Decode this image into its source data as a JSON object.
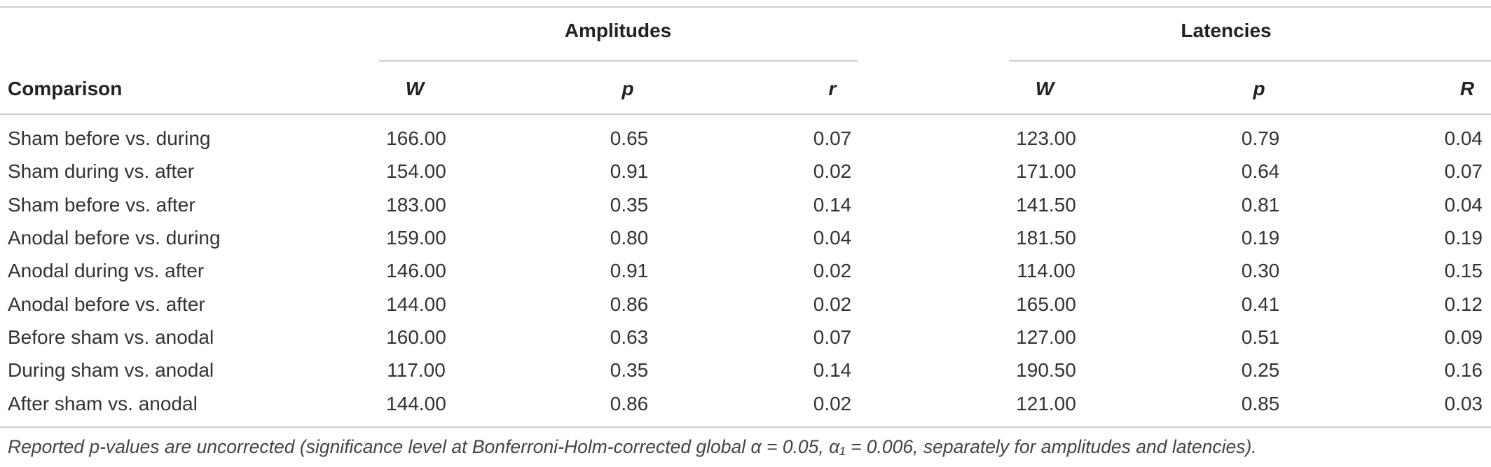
{
  "table": {
    "group_headers": {
      "amplitudes": "Amplitudes",
      "latencies": "Latencies"
    },
    "columns": {
      "comparison": "Comparison",
      "amp_w": "W",
      "amp_p": "p",
      "amp_r": "r",
      "lat_w": "W",
      "lat_p": "p",
      "lat_r": "R"
    },
    "rows": [
      {
        "comparison": "Sham before vs. during",
        "amp_w": "166.00",
        "amp_p": "0.65",
        "amp_r": "0.07",
        "lat_w": "123.00",
        "lat_p": "0.79",
        "lat_r": "0.04"
      },
      {
        "comparison": "Sham during vs. after",
        "amp_w": "154.00",
        "amp_p": "0.91",
        "amp_r": "0.02",
        "lat_w": "171.00",
        "lat_p": "0.64",
        "lat_r": "0.07"
      },
      {
        "comparison": "Sham before vs. after",
        "amp_w": "183.00",
        "amp_p": "0.35",
        "amp_r": "0.14",
        "lat_w": "141.50",
        "lat_p": "0.81",
        "lat_r": "0.04"
      },
      {
        "comparison": "Anodal before vs. during",
        "amp_w": "159.00",
        "amp_p": "0.80",
        "amp_r": "0.04",
        "lat_w": "181.50",
        "lat_p": "0.19",
        "lat_r": "0.19"
      },
      {
        "comparison": "Anodal during vs. after",
        "amp_w": "146.00",
        "amp_p": "0.91",
        "amp_r": "0.02",
        "lat_w": "114.00",
        "lat_p": "0.30",
        "lat_r": "0.15"
      },
      {
        "comparison": "Anodal before vs. after",
        "amp_w": "144.00",
        "amp_p": "0.86",
        "amp_r": "0.02",
        "lat_w": "165.00",
        "lat_p": "0.41",
        "lat_r": "0.12"
      },
      {
        "comparison": "Before sham vs. anodal",
        "amp_w": "160.00",
        "amp_p": "0.63",
        "amp_r": "0.07",
        "lat_w": "127.00",
        "lat_p": "0.51",
        "lat_r": "0.09"
      },
      {
        "comparison": "During sham vs. anodal",
        "amp_w": "117.00",
        "amp_p": "0.35",
        "amp_r": "0.14",
        "lat_w": "190.50",
        "lat_p": "0.25",
        "lat_r": "0.16"
      },
      {
        "comparison": "After sham vs. anodal",
        "amp_w": "144.00",
        "amp_p": "0.86",
        "amp_r": "0.02",
        "lat_w": "121.00",
        "lat_p": "0.85",
        "lat_r": "0.03"
      }
    ],
    "footnote": "Reported p-values are uncorrected (significance level at Bonferroni-Holm-corrected global α = 0.05, α₁ = 0.006, separately for amplitudes and latencies)."
  }
}
